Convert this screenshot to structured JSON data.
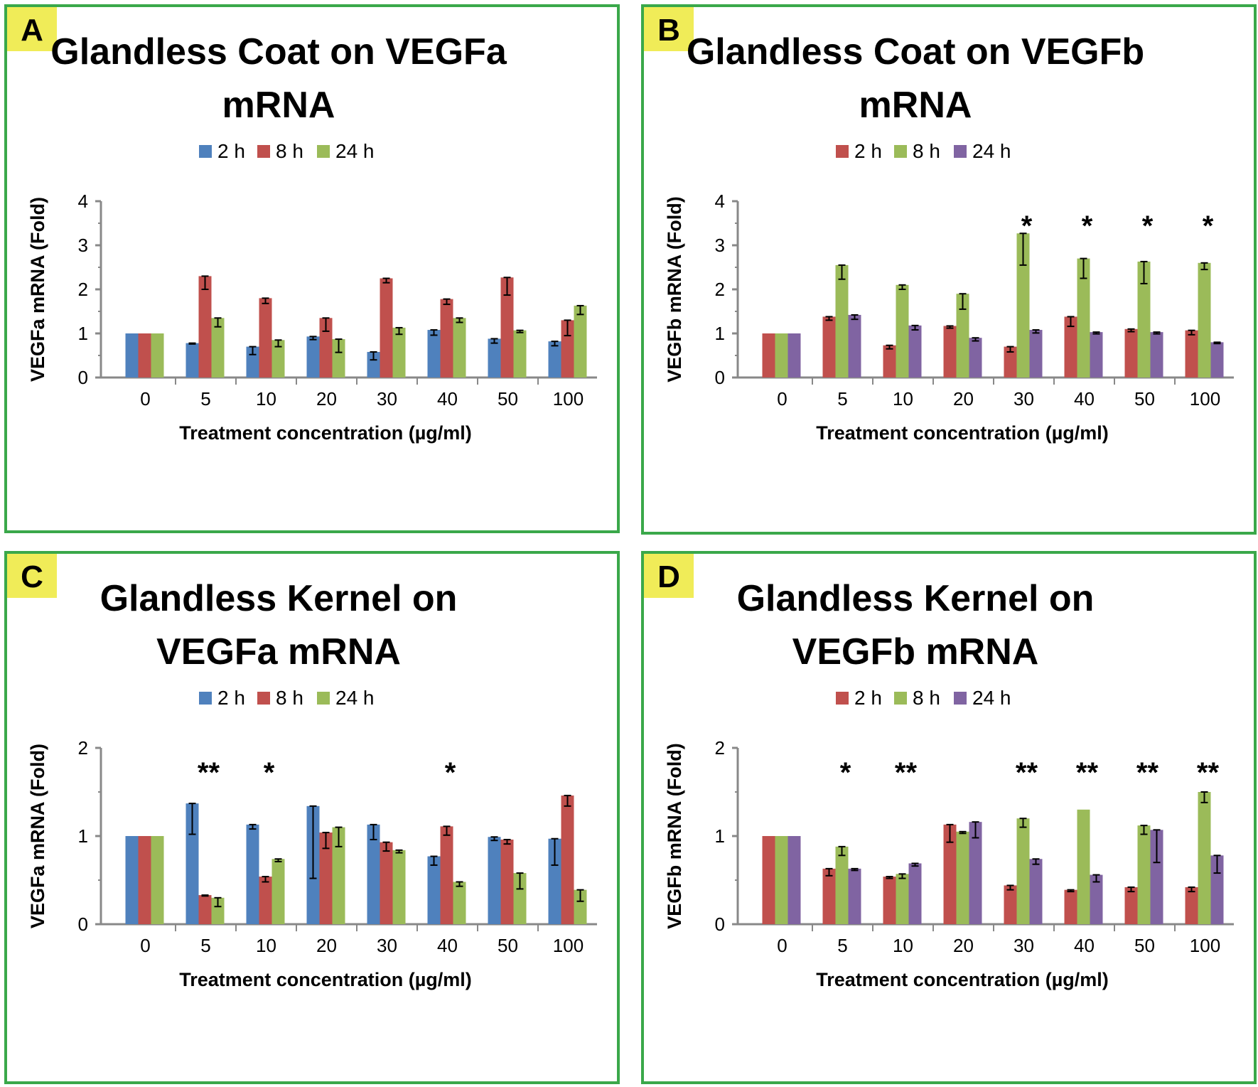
{
  "colors": {
    "blue": "#4f81bd",
    "red": "#c0504d",
    "green": "#9bbb59",
    "purple": "#8064a2",
    "border": "#3aa84a",
    "label_bg": "#f0ec58"
  },
  "chart_data": [
    {
      "type": "bar",
      "panel_label": "A",
      "title": [
        "Glandless Coat on VEGFa",
        "mRNA"
      ],
      "xlabel": "Treatment concentration (µg/ml)",
      "ylabel": "VEGFa mRNA (Fold)",
      "ylim": [
        0,
        4
      ],
      "yticks": [
        "0",
        "1",
        "2",
        "3",
        "4"
      ],
      "categories": [
        "0",
        "5",
        "10",
        "20",
        "30",
        "40",
        "50",
        "100"
      ],
      "series": [
        {
          "name": "2 h",
          "color": "#4f81bd",
          "values": [
            1,
            0.78,
            0.7,
            0.93,
            0.58,
            1.08,
            0.88,
            0.82
          ],
          "errors": [
            0,
            0.02,
            0.18,
            0.07,
            0.18,
            0.12,
            0.1,
            0.1
          ]
        },
        {
          "name": "8 h",
          "color": "#c0504d",
          "values": [
            1,
            2.3,
            1.8,
            1.35,
            2.25,
            1.78,
            2.27,
            1.3
          ],
          "errors": [
            0,
            0.3,
            0.12,
            0.3,
            0.1,
            0.12,
            0.4,
            0.35
          ]
        },
        {
          "name": "24 h",
          "color": "#9bbb59",
          "values": [
            1,
            1.35,
            0.85,
            0.87,
            1.13,
            1.35,
            1.07,
            1.63
          ],
          "errors": [
            0,
            0.2,
            0.15,
            0.3,
            0.15,
            0.1,
            0.05,
            0.2
          ]
        }
      ],
      "annotations": []
    },
    {
      "type": "bar",
      "panel_label": "B",
      "title": [
        "Glandless Coat on VEGFb",
        "mRNA"
      ],
      "xlabel": "Treatment concentration (µg/ml)",
      "ylabel": "VEGFb mRNA (Fold)",
      "ylim": [
        0,
        4
      ],
      "yticks": [
        "0",
        "1",
        "2",
        "3",
        "4"
      ],
      "categories": [
        "0",
        "5",
        "10",
        "20",
        "30",
        "40",
        "50",
        "100"
      ],
      "series": [
        {
          "name": "2 h",
          "color": "#c0504d",
          "values": [
            1,
            1.38,
            0.73,
            1.17,
            0.7,
            1.38,
            1.1,
            1.07
          ],
          "errors": [
            0,
            0.08,
            0.08,
            0.05,
            0.12,
            0.22,
            0.06,
            0.1
          ]
        },
        {
          "name": "8 h",
          "color": "#9bbb59",
          "values": [
            1,
            2.55,
            2.1,
            1.9,
            3.27,
            2.7,
            2.63,
            2.6
          ],
          "errors": [
            0,
            0.32,
            0.1,
            0.35,
            0.72,
            0.45,
            0.5,
            0.15
          ]
        },
        {
          "name": "24 h",
          "color": "#8064a2",
          "values": [
            1,
            1.42,
            1.18,
            0.9,
            1.08,
            1.03,
            1.03,
            0.8
          ],
          "errors": [
            0,
            0.1,
            0.1,
            0.07,
            0.07,
            0.04,
            0.04,
            0.03
          ]
        }
      ],
      "annotations": [
        {
          "category": "30",
          "text": "*"
        },
        {
          "category": "40",
          "text": "*"
        },
        {
          "category": "50",
          "text": "*"
        },
        {
          "category": "100",
          "text": "*"
        }
      ]
    },
    {
      "type": "bar",
      "panel_label": "C",
      "title": [
        "Glandless Kernel on",
        "VEGFa mRNA"
      ],
      "xlabel": "Treatment concentration (µg/ml)",
      "ylabel": "VEGFa mRNA (Fold)",
      "ylim": [
        0,
        2
      ],
      "yticks": [
        "0",
        "1",
        "2"
      ],
      "categories": [
        "0",
        "5",
        "10",
        "20",
        "30",
        "40",
        "50",
        "100"
      ],
      "series": [
        {
          "name": "2 h",
          "color": "#4f81bd",
          "values": [
            1,
            1.37,
            1.13,
            1.34,
            1.13,
            0.77,
            0.99,
            0.97
          ],
          "errors": [
            0,
            0.35,
            0.05,
            0.82,
            0.17,
            0.1,
            0.04,
            0.3
          ]
        },
        {
          "name": "8 h",
          "color": "#c0504d",
          "values": [
            1,
            0.33,
            0.54,
            1.04,
            0.93,
            1.11,
            0.96,
            1.46
          ],
          "errors": [
            0,
            0.01,
            0.06,
            0.18,
            0.1,
            0.1,
            0.05,
            0.12
          ]
        },
        {
          "name": "24 h",
          "color": "#9bbb59",
          "values": [
            1,
            0.3,
            0.74,
            1.1,
            0.84,
            0.48,
            0.58,
            0.39
          ],
          "errors": [
            0,
            0.1,
            0.03,
            0.22,
            0.03,
            0.05,
            0.18,
            0.13
          ]
        }
      ],
      "annotations": [
        {
          "category": "5",
          "text": "**"
        },
        {
          "category": "10",
          "text": "*"
        },
        {
          "category": "40",
          "text": "*"
        }
      ]
    },
    {
      "type": "bar",
      "panel_label": "D",
      "title": [
        "Glandless Kernel on",
        "VEGFb mRNA"
      ],
      "xlabel": "Treatment concentration (µg/ml)",
      "ylabel": "VEGFb mRNA (Fold)",
      "ylim": [
        0,
        2
      ],
      "yticks": [
        "0",
        "1",
        "2"
      ],
      "categories": [
        "0",
        "5",
        "10",
        "20",
        "30",
        "40",
        "50",
        "100"
      ],
      "series": [
        {
          "name": "2 h",
          "color": "#c0504d",
          "values": [
            1,
            0.63,
            0.54,
            1.13,
            0.44,
            0.39,
            0.42,
            0.42
          ],
          "errors": [
            0,
            0.08,
            0.02,
            0.2,
            0.05,
            0.02,
            0.05,
            0.05
          ]
        },
        {
          "name": "8 h",
          "color": "#9bbb59",
          "values": [
            1,
            0.88,
            0.57,
            1.05,
            1.2,
            1.3,
            1.12,
            1.5
          ],
          "errors": [
            0,
            0.1,
            0.05,
            0.02,
            0.1,
            0.0,
            0.1,
            0.12
          ]
        },
        {
          "name": "24 h",
          "color": "#8064a2",
          "values": [
            1,
            0.63,
            0.69,
            1.16,
            0.74,
            0.56,
            1.07,
            0.78
          ],
          "errors": [
            0,
            0.02,
            0.03,
            0.18,
            0.06,
            0.08,
            0.37,
            0.2
          ]
        }
      ],
      "annotations": [
        {
          "category": "5",
          "text": "*"
        },
        {
          "category": "10",
          "text": "**"
        },
        {
          "category": "30",
          "text": "**"
        },
        {
          "category": "40",
          "text": "**"
        },
        {
          "category": "50",
          "text": "**"
        },
        {
          "category": "100",
          "text": "**"
        }
      ]
    }
  ]
}
